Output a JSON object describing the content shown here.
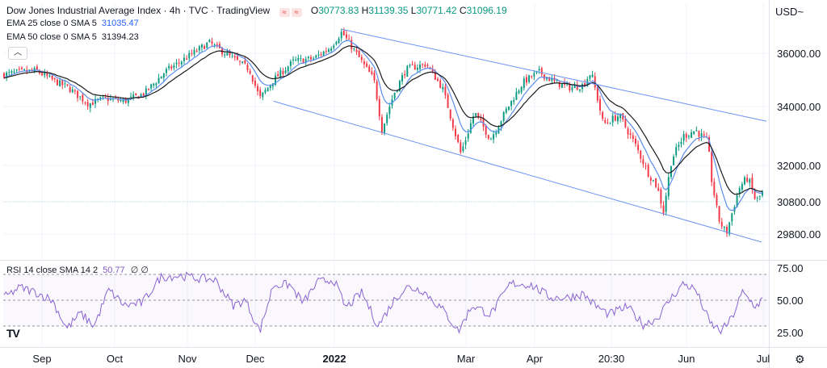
{
  "header": {
    "title": "Dow Jones Industrial Average Index · 4h · TVC · TradingView",
    "ohlc": {
      "o_label": "O",
      "o": "30773.83",
      "h_label": "H",
      "h": "31139.35",
      "l_label": "L",
      "l": "30771.42",
      "c_label": "C",
      "c": "31096.19"
    },
    "currency": "USD~",
    "collapse_icon": "chevron-up-icon"
  },
  "indicators": {
    "ema25": {
      "label": "EMA 25 close 0 SMA 5",
      "value": "31035.47"
    },
    "ema50": {
      "label": "EMA 50 close 0 SMA 5",
      "value": "31394.23"
    },
    "rsi": {
      "label": "RSI 14 close SMA 14 2",
      "value": "50.77",
      "extra": "∅ ∅"
    }
  },
  "colors": {
    "up": "#089981",
    "down": "#f23645",
    "ema25": "#5b8def",
    "ema50": "#1a1a1a",
    "channel": "#6b93f3",
    "rsi": "#8a63d2",
    "last_price_line": "#b2dfdb"
  },
  "chart_data": [
    {
      "type": "line",
      "subtype": "candlestick",
      "x_ticks": [
        "Sep",
        "Oct",
        "Nov",
        "Dec",
        "2022",
        "Mar",
        "Apr",
        "20:30",
        "Jun",
        "Jul"
      ],
      "y_ticks": [
        "36000.00",
        "34000.00",
        "32000.00",
        "30800.00",
        "29800.00"
      ],
      "ylim": [
        29000,
        37200
      ],
      "anchors": [
        [
          0,
          35200
        ],
        [
          20,
          35300
        ],
        [
          40,
          35350
        ],
        [
          60,
          35000
        ],
        [
          80,
          34700
        ],
        [
          105,
          34100
        ],
        [
          125,
          34300
        ],
        [
          150,
          34200
        ],
        [
          175,
          34500
        ],
        [
          200,
          35300
        ],
        [
          230,
          35900
        ],
        [
          255,
          36400
        ],
        [
          280,
          35900
        ],
        [
          305,
          35400
        ],
        [
          318,
          34300
        ],
        [
          335,
          35000
        ],
        [
          360,
          35700
        ],
        [
          385,
          35800
        ],
        [
          405,
          36200
        ],
        [
          420,
          36800
        ],
        [
          440,
          35900
        ],
        [
          460,
          35000
        ],
        [
          470,
          33200
        ],
        [
          485,
          34500
        ],
        [
          500,
          35400
        ],
        [
          525,
          35600
        ],
        [
          545,
          34700
        ],
        [
          560,
          33200
        ],
        [
          568,
          32400
        ],
        [
          585,
          33800
        ],
        [
          605,
          32900
        ],
        [
          625,
          33900
        ],
        [
          645,
          34900
        ],
        [
          665,
          35300
        ],
        [
          685,
          34900
        ],
        [
          705,
          34700
        ],
        [
          720,
          34800
        ],
        [
          730,
          35300
        ],
        [
          745,
          33400
        ],
        [
          765,
          33700
        ],
        [
          785,
          32700
        ],
        [
          800,
          31800
        ],
        [
          812,
          31300
        ],
        [
          820,
          30500
        ],
        [
          830,
          32200
        ],
        [
          845,
          33000
        ],
        [
          860,
          33200
        ],
        [
          875,
          32800
        ],
        [
          880,
          31500
        ],
        [
          888,
          30300
        ],
        [
          898,
          29800
        ],
        [
          908,
          30700
        ],
        [
          915,
          31300
        ],
        [
          925,
          31600
        ],
        [
          935,
          30800
        ],
        [
          943,
          31096
        ]
      ],
      "channel": {
        "upper": [
          [
            420,
            36900
          ],
          [
            948,
            33500
          ]
        ],
        "lower": [
          [
            335,
            34200
          ],
          [
            942,
            29550
          ]
        ]
      },
      "last_price_line": 30800
    },
    {
      "type": "line",
      "subtype": "rsi",
      "y_ticks": [
        "75.00",
        "50.00",
        "25.00"
      ],
      "ylim": [
        15,
        80
      ],
      "levels": [
        70,
        50,
        30
      ],
      "anchors": [
        [
          0,
          52
        ],
        [
          20,
          60
        ],
        [
          40,
          56
        ],
        [
          60,
          50
        ],
        [
          78,
          28
        ],
        [
          95,
          40
        ],
        [
          112,
          30
        ],
        [
          130,
          58
        ],
        [
          150,
          46
        ],
        [
          172,
          48
        ],
        [
          195,
          68
        ],
        [
          220,
          69
        ],
        [
          240,
          67
        ],
        [
          262,
          66
        ],
        [
          285,
          46
        ],
        [
          300,
          50
        ],
        [
          318,
          26
        ],
        [
          335,
          62
        ],
        [
          355,
          62
        ],
        [
          372,
          48
        ],
        [
          390,
          64
        ],
        [
          410,
          66
        ],
        [
          425,
          44
        ],
        [
          445,
          56
        ],
        [
          465,
          30
        ],
        [
          485,
          50
        ],
        [
          500,
          60
        ],
        [
          520,
          58
        ],
        [
          545,
          43
        ],
        [
          565,
          26
        ],
        [
          582,
          46
        ],
        [
          605,
          39
        ],
        [
          630,
          63
        ],
        [
          655,
          62
        ],
        [
          680,
          52
        ],
        [
          700,
          52
        ],
        [
          720,
          55
        ],
        [
          735,
          46
        ],
        [
          752,
          39
        ],
        [
          775,
          45
        ],
        [
          795,
          31
        ],
        [
          812,
          36
        ],
        [
          830,
          52
        ],
        [
          845,
          63
        ],
        [
          860,
          58
        ],
        [
          878,
          32
        ],
        [
          892,
          26
        ],
        [
          905,
          36
        ],
        [
          918,
          56
        ],
        [
          935,
          45
        ],
        [
          943,
          51
        ]
      ]
    }
  ]
}
